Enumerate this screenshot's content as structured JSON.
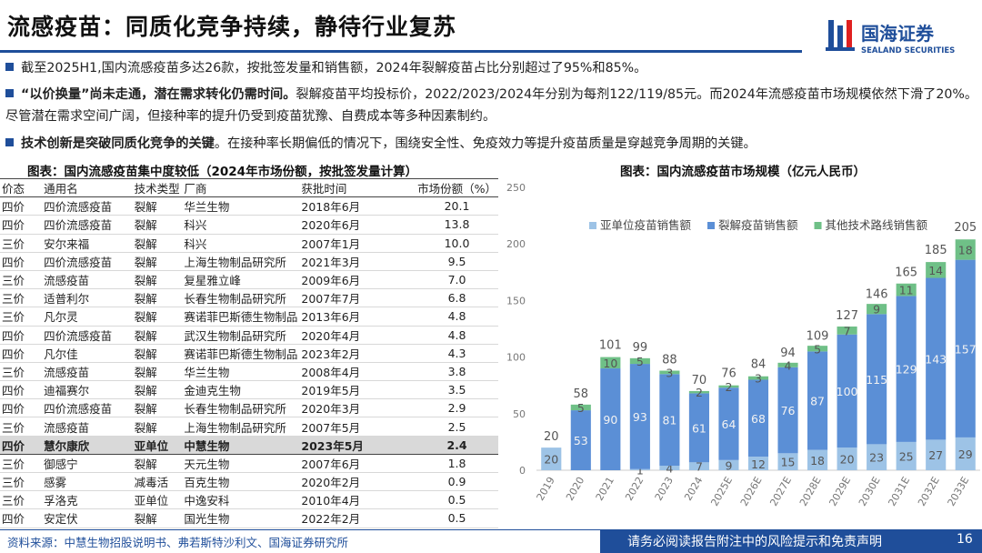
{
  "header": {
    "title": "流感疫苗：同质化竞争持续，静待行业复苏",
    "logo_cn": "国海证券",
    "logo_en": "SEALAND SECURITIES"
  },
  "bullets": [
    {
      "bold": "",
      "text": "截至2025H1,国内流感疫苗多达26款，按批签发量和销售额，2024年裂解疫苗占比分别超过了95%和85%。"
    },
    {
      "bold": "“以价换量”尚未走通，潜在需求转化仍需时间。",
      "text": "裂解疫苗平均投标价，2022/2023/2024年分别为每剂122/119/85元。而2024年流感疫苗市场规模依然下滑了20%。尽管潜在需求空间广阔，但接种率的提升仍受到疫苗犹豫、自费成本等多种因素制约。"
    },
    {
      "bold": "技术创新是突破同质化竞争的关键",
      "text": "。在接种率长期偏低的情况下，围绕安全性、免疫效力等提升疫苗质量是穿越竞争周期的关键。"
    }
  ],
  "table": {
    "title": "图表：国内流感疫苗集中度较低（2024年市场份额，按批签发量计算）",
    "headers": [
      "价态",
      "通用名",
      "技术类型",
      "厂商",
      "获批时间",
      "市场份额（%）"
    ],
    "rows": [
      [
        "四价",
        "四价流感疫苗",
        "裂解",
        "华兰生物",
        "2018年6月",
        "20.1"
      ],
      [
        "四价",
        "四价流感疫苗",
        "裂解",
        "科兴",
        "2020年6月",
        "13.8"
      ],
      [
        "三价",
        "安尔来福",
        "裂解",
        "科兴",
        "2007年1月",
        "10.0"
      ],
      [
        "四价",
        "四价流感疫苗",
        "裂解",
        "上海生物制品研究所",
        "2021年3月",
        "9.5"
      ],
      [
        "三价",
        "流感疫苗",
        "裂解",
        "复星雅立峰",
        "2009年6月",
        "7.0"
      ],
      [
        "三价",
        "适普利尔",
        "裂解",
        "长春生物制品研究所",
        "2007年7月",
        "6.8"
      ],
      [
        "三价",
        "凡尔灵",
        "裂解",
        "赛诺菲巴斯德生物制品",
        "2013年6月",
        "4.8"
      ],
      [
        "四价",
        "四价流感疫苗",
        "裂解",
        "武汉生物制品研究所",
        "2020年4月",
        "4.8"
      ],
      [
        "四价",
        "凡尔佳",
        "裂解",
        "赛诺菲巴斯德生物制品",
        "2023年2月",
        "4.3"
      ],
      [
        "三价",
        "流感疫苗",
        "裂解",
        "华兰生物",
        "2008年4月",
        "3.8"
      ],
      [
        "四价",
        "迪福赛尔",
        "裂解",
        "金迪克生物",
        "2019年5月",
        "3.5"
      ],
      [
        "四价",
        "四价流感疫苗",
        "裂解",
        "长春生物制品研究所",
        "2020年3月",
        "2.9"
      ],
      [
        "三价",
        "流感疫苗",
        "裂解",
        "上海生物制品研究所",
        "2007年5月",
        "2.5"
      ],
      [
        "四价",
        "慧尔康欣",
        "亚单位",
        "中慧生物",
        "2023年5月",
        "2.4"
      ],
      [
        "三价",
        "御感宁",
        "裂解",
        "天元生物",
        "2007年6月",
        "1.8"
      ],
      [
        "三价",
        "感雾",
        "减毒活",
        "百克生物",
        "2020年2月",
        "0.9"
      ],
      [
        "三价",
        "孚洛克",
        "亚单位",
        "中逸安科",
        "2010年4月",
        "0.5"
      ],
      [
        "四价",
        "安定伏",
        "裂解",
        "国光生物",
        "2022年2月",
        "0.5"
      ]
    ],
    "highlight_row": 13
  },
  "chart_data": {
    "type": "stacked_bar",
    "title": "图表：国内流感疫苗市场规模（亿元人民币）",
    "categories": [
      "2019",
      "2020",
      "2021",
      "2022",
      "2023",
      "2024",
      "2025E",
      "2026E",
      "2027E",
      "2028E",
      "2029E",
      "2030E",
      "2031E",
      "2032E",
      "2033E"
    ],
    "series": [
      {
        "name": "亚单位疫苗销售额",
        "color": "#9dc3e6",
        "values": [
          20,
          0,
          0,
          1,
          4,
          7,
          9,
          12,
          15,
          18,
          20,
          23,
          25,
          27,
          29
        ]
      },
      {
        "name": "裂解疫苗销售额",
        "color": "#5b8fd6",
        "values": [
          null,
          53,
          90,
          93,
          81,
          61,
          64,
          68,
          76,
          87,
          100,
          115,
          129,
          143,
          157
        ]
      },
      {
        "name": "其他技术路线销售额",
        "color": "#6fc087",
        "values": [
          null,
          5,
          10,
          5,
          3,
          2,
          2,
          3,
          4,
          5,
          7,
          9,
          11,
          14,
          18
        ]
      }
    ],
    "totals": [
      20,
      58,
      101,
      99,
      88,
      70,
      76,
      84,
      94,
      109,
      127,
      146,
      165,
      185,
      205
    ],
    "ylim": [
      0,
      250
    ],
    "yticks": [
      0,
      50,
      100,
      150,
      200,
      250
    ],
    "grid": false,
    "legend": "top"
  },
  "footer": {
    "source": "资料来源：中慧生物招股说明书、弗若斯特沙利文、国海证券研究所",
    "disclaimer": "请务必阅读报告附注中的风险提示和免责声明",
    "page": "16"
  }
}
